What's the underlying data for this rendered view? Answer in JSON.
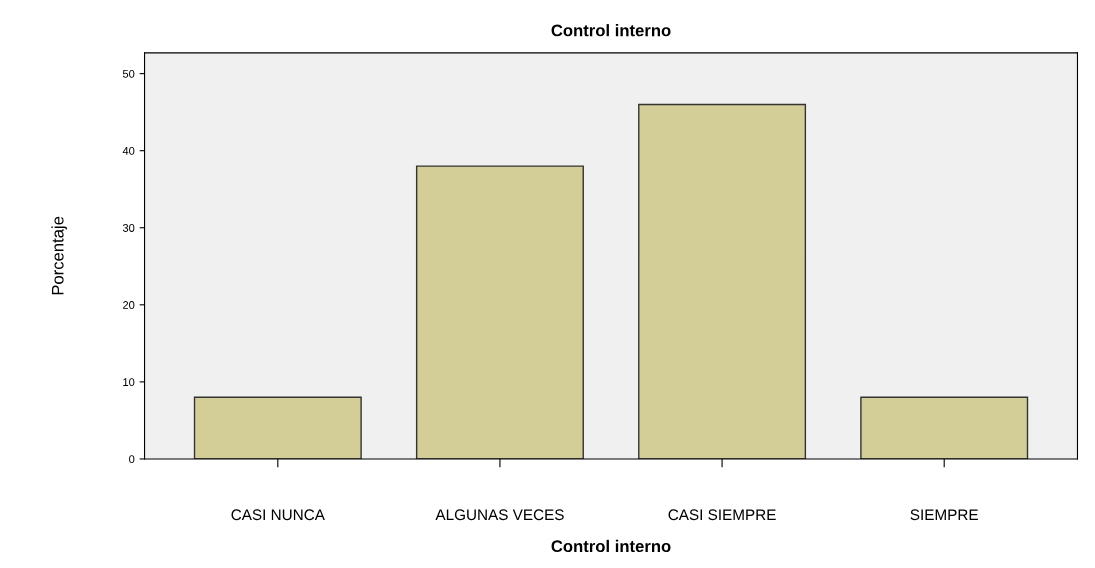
{
  "chart_data": {
    "type": "bar",
    "title": "Control interno",
    "xlabel": "Control interno",
    "ylabel": "Porcentaje",
    "categories": [
      "CASI NUNCA",
      "ALGUNAS VECES",
      "CASI SIEMPRE",
      "SIEMPRE"
    ],
    "values": [
      8,
      38,
      46,
      8
    ],
    "color": "#d3ce97",
    "ylim": [
      0,
      52.7
    ],
    "yticks": [
      0,
      10,
      20,
      30,
      40,
      50
    ],
    "grid": false
  }
}
